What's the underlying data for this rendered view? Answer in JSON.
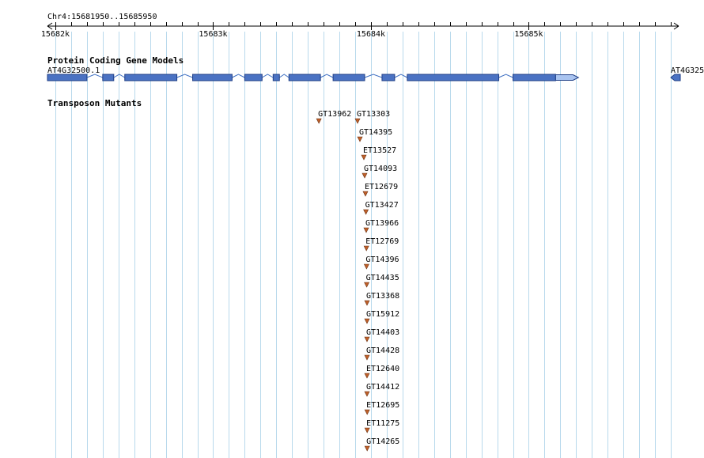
{
  "ruler": {
    "region_label": "Chr4:15681950..15685950",
    "start": 15681950,
    "end": 15685950,
    "tick_labels": [
      "15682k",
      "15683k",
      "15684k",
      "15685k"
    ],
    "tick_values": [
      15682000,
      15683000,
      15684000,
      15685000
    ]
  },
  "gene_track": {
    "title": "Protein Coding Gene Models",
    "genes": [
      {
        "name": "AT4G32500.1",
        "strand": "+",
        "start": 15681950,
        "end": 15685280,
        "exons": [
          [
            15681950,
            15682200
          ],
          [
            15682300,
            15682370
          ],
          [
            15682440,
            15682770
          ],
          [
            15682870,
            15683120
          ],
          [
            15683200,
            15683310
          ],
          [
            15683380,
            15683420
          ],
          [
            15683480,
            15683680
          ],
          [
            15683760,
            15683960
          ],
          [
            15684070,
            15684150
          ],
          [
            15684230,
            15684810
          ],
          [
            15684900,
            15685170
          ]
        ],
        "utr3": [
          15685170,
          15685280
        ],
        "intron_color": "#3e6fc2",
        "exon_fill": "#4a72c3",
        "exon_stroke": "#1f3e86",
        "utr_fill": "#a9c4f0"
      },
      {
        "name": "AT4G325",
        "strand": "-",
        "start": 15685900,
        "end": 15685950
      }
    ]
  },
  "mutant_track": {
    "title": "Transposon Mutants",
    "marker_color": "#c0602a",
    "mutants": [
      {
        "name": "GT13962",
        "pos": 15683670
      },
      {
        "name": "GT13303",
        "pos": 15683915
      },
      {
        "name": "GT14395",
        "pos": 15683930
      },
      {
        "name": "ET13527",
        "pos": 15683955
      },
      {
        "name": "GT14093",
        "pos": 15683960
      },
      {
        "name": "ET12679",
        "pos": 15683965
      },
      {
        "name": "GT13427",
        "pos": 15683968
      },
      {
        "name": "GT13966",
        "pos": 15683970
      },
      {
        "name": "ET12769",
        "pos": 15683971
      },
      {
        "name": "GT14396",
        "pos": 15683972
      },
      {
        "name": "GT14435",
        "pos": 15683973
      },
      {
        "name": "GT13368",
        "pos": 15683975
      },
      {
        "name": "GT15912",
        "pos": 15683975
      },
      {
        "name": "GT14403",
        "pos": 15683975
      },
      {
        "name": "GT14428",
        "pos": 15683975
      },
      {
        "name": "ET12640",
        "pos": 15683975
      },
      {
        "name": "GT14412",
        "pos": 15683975
      },
      {
        "name": "ET12695",
        "pos": 15683976
      },
      {
        "name": "ET11275",
        "pos": 15683976
      },
      {
        "name": "GT14265",
        "pos": 15683976
      }
    ]
  },
  "grid": {
    "line_color": "#b8d9ec",
    "minor_step": 100
  }
}
